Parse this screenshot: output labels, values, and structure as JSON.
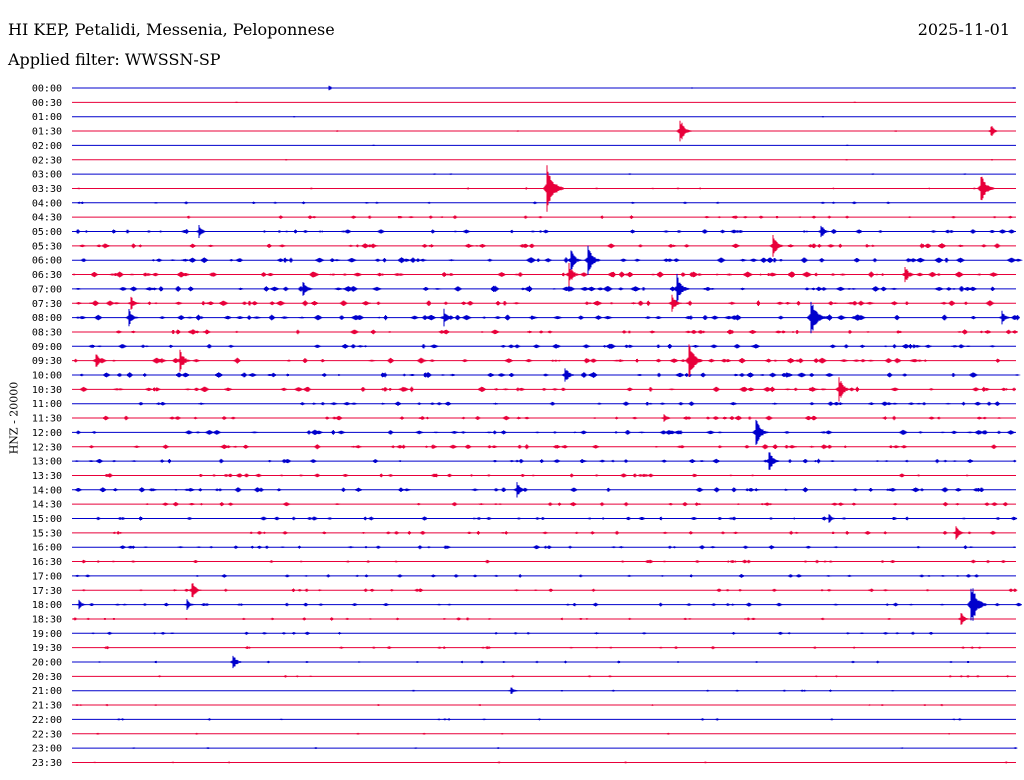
{
  "header": {
    "title": "HI KEP, Petalidi, Messenia, Peloponnese",
    "date": "2025-11-01",
    "filter": "Applied filter: WWSSN-SP"
  },
  "chart_data": {
    "type": "line",
    "ylabel": "HNZ - 20000",
    "row_times": [
      "00:00",
      "00:30",
      "01:00",
      "01:30",
      "02:00",
      "02:30",
      "03:00",
      "03:30",
      "04:00",
      "04:30",
      "05:00",
      "05:30",
      "06:00",
      "06:30",
      "07:00",
      "07:30",
      "08:00",
      "08:30",
      "09:00",
      "09:30",
      "10:00",
      "10:30",
      "11:00",
      "11:30",
      "12:00",
      "12:30",
      "13:00",
      "13:30",
      "14:00",
      "14:30",
      "15:00",
      "15:30",
      "16:00",
      "16:30",
      "17:00",
      "17:30",
      "18:00",
      "18:30",
      "19:00",
      "19:30",
      "20:00",
      "20:30",
      "21:00",
      "21:30",
      "22:00",
      "22:30",
      "23:00",
      "23:30"
    ],
    "colors": [
      "#0000cc",
      "#e8003a"
    ],
    "grid": false,
    "legend": "none",
    "activity": [
      0.02,
      0.02,
      0.02,
      0.04,
      0.02,
      0.03,
      0.06,
      0.12,
      0.2,
      0.35,
      0.55,
      0.6,
      0.7,
      0.75,
      0.75,
      0.7,
      0.75,
      0.6,
      0.6,
      0.7,
      0.65,
      0.65,
      0.5,
      0.5,
      0.6,
      0.55,
      0.5,
      0.45,
      0.6,
      0.45,
      0.45,
      0.4,
      0.45,
      0.35,
      0.35,
      0.35,
      0.4,
      0.3,
      0.3,
      0.25,
      0.2,
      0.15,
      0.12,
      0.12,
      0.15,
      0.08,
      0.08,
      0.08
    ],
    "events": [
      {
        "row": 0,
        "x": 330,
        "amp": 3
      },
      {
        "row": 3,
        "x": 681,
        "amp": 14
      },
      {
        "row": 3,
        "x": 992,
        "amp": 7
      },
      {
        "row": 7,
        "x": 548,
        "amp": 26
      },
      {
        "row": 7,
        "x": 982,
        "amp": 18
      },
      {
        "row": 10,
        "x": 822,
        "amp": 8
      },
      {
        "row": 10,
        "x": 200,
        "amp": 7
      },
      {
        "row": 11,
        "x": 774,
        "amp": 12
      },
      {
        "row": 12,
        "x": 589,
        "amp": 16
      },
      {
        "row": 12,
        "x": 572,
        "amp": 12
      },
      {
        "row": 13,
        "x": 570,
        "amp": 12
      },
      {
        "row": 13,
        "x": 906,
        "amp": 10
      },
      {
        "row": 14,
        "x": 678,
        "amp": 16
      },
      {
        "row": 14,
        "x": 304,
        "amp": 10
      },
      {
        "row": 15,
        "x": 673,
        "amp": 10
      },
      {
        "row": 15,
        "x": 132,
        "amp": 8
      },
      {
        "row": 16,
        "x": 130,
        "amp": 10
      },
      {
        "row": 16,
        "x": 445,
        "amp": 9
      },
      {
        "row": 16,
        "x": 812,
        "amp": 22
      },
      {
        "row": 16,
        "x": 1003,
        "amp": 8
      },
      {
        "row": 19,
        "x": 181,
        "amp": 12
      },
      {
        "row": 19,
        "x": 690,
        "amp": 20
      },
      {
        "row": 19,
        "x": 97,
        "amp": 10
      },
      {
        "row": 20,
        "x": 566,
        "amp": 10
      },
      {
        "row": 21,
        "x": 840,
        "amp": 14
      },
      {
        "row": 23,
        "x": 665,
        "amp": 6
      },
      {
        "row": 24,
        "x": 757,
        "amp": 16
      },
      {
        "row": 26,
        "x": 770,
        "amp": 12
      },
      {
        "row": 28,
        "x": 518,
        "amp": 10
      },
      {
        "row": 30,
        "x": 830,
        "amp": 6
      },
      {
        "row": 31,
        "x": 957,
        "amp": 8
      },
      {
        "row": 35,
        "x": 193,
        "amp": 10
      },
      {
        "row": 36,
        "x": 972,
        "amp": 24
      },
      {
        "row": 36,
        "x": 188,
        "amp": 6
      },
      {
        "row": 36,
        "x": 80,
        "amp": 5
      },
      {
        "row": 37,
        "x": 962,
        "amp": 8
      },
      {
        "row": 40,
        "x": 234,
        "amp": 9
      },
      {
        "row": 42,
        "x": 512,
        "amp": 5
      }
    ]
  }
}
